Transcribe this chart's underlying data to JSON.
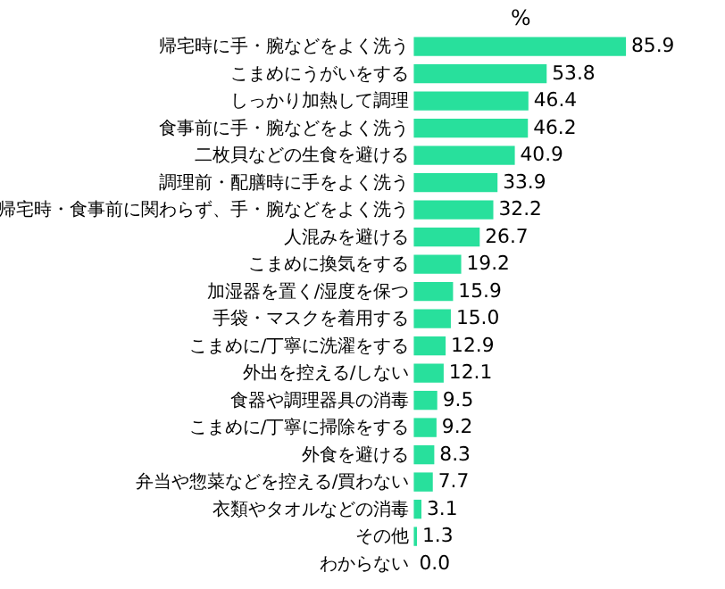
{
  "chart_data": {
    "type": "bar",
    "orientation": "horizontal",
    "xlabel": "%",
    "categories": [
      "帰宅時に手・腕などをよく洗う",
      "こまめにうがいをする",
      "しっかり加熱して調理",
      "食事前に手・腕などをよく洗う",
      "二枚貝などの生食を避ける",
      "調理前・配膳時に手をよく洗う",
      "帰宅時・食事前に関わらず、手・腕などをよく洗う",
      "人混みを避ける",
      "こまめに換気をする",
      "加湿器を置く/湿度を保つ",
      "手袋・マスクを着用する",
      "こまめに/丁寧に洗濯をする",
      "外出を控える/しない",
      "食器や調理器具の消毒",
      "こまめに/丁寧に掃除をする",
      "外食を避ける",
      "弁当や惣菜などを控える/買わない",
      "衣類やタオルなどの消毒",
      "その他",
      "わからない"
    ],
    "values": [
      85.9,
      53.8,
      46.4,
      46.2,
      40.9,
      33.9,
      32.2,
      26.7,
      19.2,
      15.9,
      15.0,
      12.9,
      12.1,
      9.5,
      9.2,
      8.3,
      7.7,
      3.1,
      1.3,
      0.0
    ],
    "value_labels": [
      "85.9",
      "53.8",
      "46.4",
      "46.2",
      "40.9",
      "33.9",
      "32.2",
      "26.7",
      "19.2",
      "15.9",
      "15.0",
      "12.9",
      "12.1",
      "9.5",
      "9.2",
      "8.3",
      "7.7",
      "3.1",
      "1.3",
      "0.0"
    ],
    "color": "#28e09c",
    "tick_labels": "y",
    "grid": false
  }
}
